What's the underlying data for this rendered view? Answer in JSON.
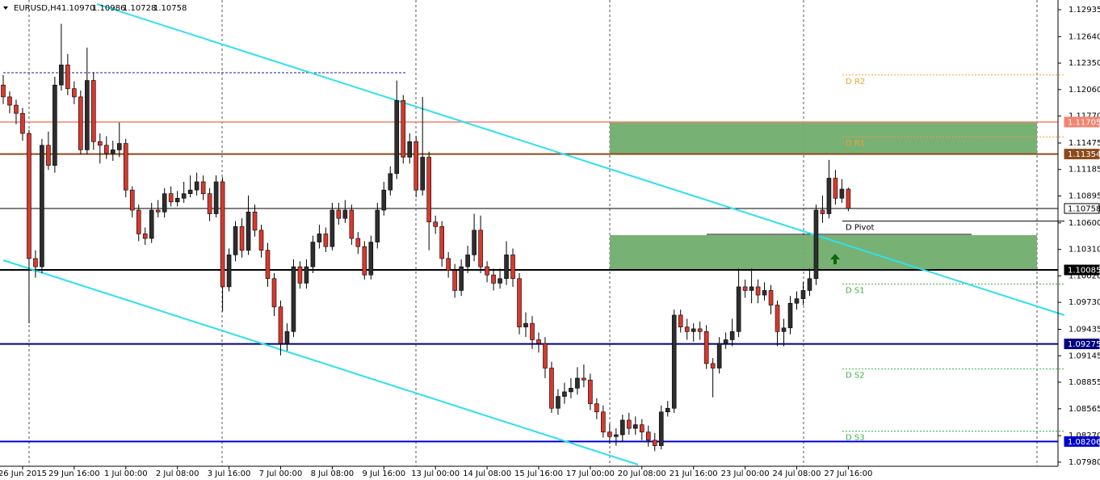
{
  "chart_data": {
    "type": "candlestick",
    "header": {
      "symbol": "EURUSD,H4",
      "ohlc": [
        "1.10970",
        "1.10986",
        "1.10728",
        "1.10758"
      ]
    },
    "up_color": "#2e2e2e",
    "down_color": "#d8392e",
    "xlim": [
      -0.5,
      163.5
    ],
    "ylim": [
      1.07935,
      1.13041
    ],
    "xticks": [
      {
        "value": 3,
        "label": "26 Jun 2015"
      },
      {
        "value": 11,
        "label": "29 Jun 16:00"
      },
      {
        "value": 19,
        "label": "1 Jul 00:00"
      },
      {
        "value": 27,
        "label": "2 Jul 08:00"
      },
      {
        "value": 35,
        "label": "3 Jul 16:00"
      },
      {
        "value": 43,
        "label": "7 Jul 00:00"
      },
      {
        "value": 51,
        "label": "8 Jul 08:00"
      },
      {
        "value": 59,
        "label": "9 Jul 16:00"
      },
      {
        "value": 67,
        "label": "13 Jul 00:00"
      },
      {
        "value": 75,
        "label": "14 Jul 08:00"
      },
      {
        "value": 83,
        "label": "15 Jul 16:00"
      },
      {
        "value": 91,
        "label": "17 Jul 00:00"
      },
      {
        "value": 99,
        "label": "20 Jul 08:00"
      },
      {
        "value": 107,
        "label": "21 Jul 16:00"
      },
      {
        "value": 115,
        "label": "23 Jul 00:00"
      },
      {
        "value": 123,
        "label": "24 Jul 08:00"
      },
      {
        "value": 131,
        "label": "27 Jul 16:00"
      }
    ],
    "yticks": [
      1.12935,
      {
        "value": 1.1264,
        "label": "1.12640"
      },
      {
        "value": 1.1235,
        "label": "1.12350"
      },
      {
        "value": 1.1206,
        "label": "1.12060"
      },
      {
        "value": 1.1177,
        "label": "1.11770"
      },
      1.11475,
      1.11185,
      1.10895,
      {
        "value": 1.106,
        "label": "1.10600"
      },
      {
        "value": 1.1031,
        "label": "1.10310"
      },
      {
        "value": 1.1002,
        "label": "1.10020"
      },
      {
        "value": 1.0973,
        "label": "1.09730"
      },
      1.09435,
      1.09145,
      1.08855,
      1.08565,
      {
        "value": 1.0827,
        "label": "1.08270"
      },
      {
        "value": 1.0798,
        "label": "1.07980"
      }
    ],
    "zones": [
      {
        "from": 1.11705,
        "to": 1.11354,
        "color": "#71ad6d"
      },
      {
        "from": 1.10466,
        "to": 1.10085,
        "color": "#71ad6d"
      }
    ],
    "levels": [
      {
        "value": 1.11705,
        "color": "#f4836f",
        "width": 1.5,
        "tag_color": "#f4836f",
        "text_color": "#ffffff"
      },
      {
        "value": 1.11354,
        "color": "#8b4a1c",
        "width": 2,
        "tag_color": "#8b4a1c",
        "text_color": "#ffffff"
      },
      {
        "value": 1.10758,
        "color": "#000000",
        "width": 1,
        "tag_color": "#ffffff",
        "text_color": "#000000"
      },
      {
        "value": 1.10085,
        "color": "#000000",
        "width": 2,
        "tag_color": "#000000",
        "text_color": "#ffffff"
      },
      {
        "value": 1.09275,
        "color": "#000080",
        "width": 2,
        "tag_color": "#000080",
        "text_color": "#ffffff"
      },
      {
        "value": 1.08206,
        "color": "#0000cd",
        "width": 2,
        "tag_color": "#0000cd",
        "text_color": "#ffffff"
      }
    ],
    "pivots": [
      {
        "name": "D R2",
        "value": 1.1222,
        "color": "#f0a030",
        "style": "dashed"
      },
      {
        "name": "D R1",
        "value": 1.1154,
        "color": "#f0a030",
        "style": "dashed"
      },
      {
        "name": "D Pivot",
        "value": 1.1062,
        "color": "#000000",
        "style": "solid"
      },
      {
        "name": "D S1",
        "value": 1.0993,
        "color": "#3cb043",
        "style": "dashed"
      },
      {
        "name": "D S2",
        "value": 1.09,
        "color": "#3cb043",
        "style": "dashed"
      },
      {
        "name": "D S3",
        "value": 1.0832,
        "color": "#3cb043",
        "style": "dashed"
      }
    ],
    "open": [
      1.1211,
      1.1198,
      1.1189,
      1.118,
      1.1158,
      1.1021,
      1.1012,
      1.1145,
      1.1123,
      1.1211,
      1.1233,
      1.1207,
      1.1198,
      1.114,
      1.1216,
      1.1149,
      1.1145,
      1.1136,
      1.114,
      1.1147,
      1.1096,
      1.1074,
      1.1048,
      1.1043,
      1.1074,
      1.1072,
      1.1092,
      1.1083,
      1.1087,
      1.1092,
      1.1096,
      1.1105,
      1.1092,
      1.107,
      1.1105,
      1.099,
      1.1025,
      1.1056,
      1.103,
      1.1072,
      1.1052,
      1.103,
      1.0999,
      1.0968,
      1.0928,
      1.0941,
      1.1012,
      1.0994,
      1.1012,
      1.1039,
      1.1048,
      1.1034,
      1.1074,
      1.1065,
      1.1074,
      1.1043,
      1.1034,
      1.1003,
      1.1039,
      1.1074,
      1.1096,
      1.1114,
      1.1194,
      1.1132,
      1.1149,
      1.1096,
      1.1132,
      1.1061,
      1.1056,
      1.1021,
      1.1008,
      1.0986,
      1.1012,
      1.1025,
      1.1052,
      1.1012,
      1.1003,
      1.0994,
      1.0999,
      1.1025,
      1.0999,
      1.0946,
      1.095,
      1.0932,
      1.0928,
      1.0901,
      1.0857,
      1.087,
      1.0875,
      1.0879,
      1.089,
      1.0888,
      1.0862,
      1.0853,
      1.0831,
      1.0826,
      1.0828,
      1.0844,
      1.0835,
      1.0839,
      1.0831,
      1.0822,
      1.0816,
      1.0853,
      1.0857,
      1.0959,
      1.0946,
      1.0941,
      1.0944,
      1.0941,
      1.0906,
      1.0901,
      1.0928,
      1.0932,
      1.0941,
      1.099,
      1.0986,
      1.099,
      1.0981,
      1.0986,
      1.097,
      1.0941,
      1.0945,
      1.0972,
      1.0977,
      1.0986,
      1.0999,
      1.1074,
      1.107,
      1.1109,
      1.1087,
      1.1097
    ],
    "high": [
      1.1222,
      1.1204,
      1.1195,
      1.1186,
      1.1162,
      1.103,
      1.1152,
      1.116,
      1.122,
      1.1278,
      1.1245,
      1.1215,
      1.1205,
      1.1252,
      1.1225,
      1.1158,
      1.1155,
      1.115,
      1.117,
      1.1152,
      1.11,
      1.108,
      1.1055,
      1.1082,
      1.1085,
      1.1098,
      1.11,
      1.1095,
      1.1105,
      1.1112,
      1.1115,
      1.1112,
      1.1098,
      1.1112,
      1.111,
      1.1032,
      1.1062,
      1.1065,
      1.109,
      1.108,
      1.1058,
      1.1038,
      1.1005,
      1.0975,
      1.095,
      1.102,
      1.1018,
      1.102,
      1.1046,
      1.1058,
      1.1055,
      1.1082,
      1.1082,
      1.1085,
      1.108,
      1.105,
      1.104,
      1.1046,
      1.1082,
      1.1105,
      1.1122,
      1.1216,
      1.12,
      1.1158,
      1.1155,
      1.1198,
      1.1138,
      1.1068,
      1.1062,
      1.1028,
      1.1015,
      1.102,
      1.1035,
      1.107,
      1.1068,
      1.1018,
      1.101,
      1.101,
      1.104,
      1.1032,
      1.1005,
      1.0962,
      1.0958,
      1.094,
      1.0935,
      1.0908,
      1.0878,
      1.0885,
      1.089,
      1.0902,
      1.0905,
      1.0895,
      1.0868,
      1.086,
      1.084,
      1.0835,
      1.085,
      1.0852,
      1.0848,
      1.0845,
      1.0838,
      1.083,
      1.086,
      1.0865,
      1.0965,
      1.0965,
      1.0955,
      1.095,
      1.0952,
      1.0948,
      1.0912,
      1.0935,
      1.094,
      1.0955,
      1.101,
      1.0998,
      1.101,
      1.0998,
      1.0995,
      1.0992,
      1.0975,
      1.0955,
      1.098,
      1.0985,
      1.0995,
      1.101,
      1.108,
      1.109,
      1.1129,
      1.1118,
      1.1108,
      1.10986
    ],
    "low": [
      1.119,
      1.118,
      1.1168,
      1.115,
      1.095,
      1.1,
      1.1005,
      1.1118,
      1.1115,
      1.1205,
      1.12,
      1.119,
      1.1135,
      1.1135,
      1.114,
      1.1125,
      1.113,
      1.1128,
      1.1132,
      1.1088,
      1.1066,
      1.104,
      1.1036,
      1.1038,
      1.1066,
      1.1066,
      1.1078,
      1.1078,
      1.1082,
      1.1088,
      1.109,
      1.1085,
      1.1062,
      1.1066,
      1.0963,
      1.0985,
      1.1018,
      1.1022,
      1.1025,
      1.1045,
      1.1022,
      1.099,
      1.0958,
      1.0915,
      1.092,
      1.0935,
      1.0988,
      1.0988,
      1.1005,
      1.1032,
      1.1028,
      1.103,
      1.1058,
      1.106,
      1.1036,
      1.1026,
      1.0998,
      1.0998,
      1.1032,
      1.1068,
      1.109,
      1.1108,
      1.1125,
      1.1125,
      1.1088,
      1.109,
      1.103,
      1.1048,
      1.1012,
      1.1,
      1.0978,
      1.098,
      1.1005,
      1.1018,
      1.1005,
      1.0995,
      1.0986,
      1.0988,
      1.0992,
      1.099,
      1.0938,
      1.0935,
      1.0922,
      1.0918,
      1.089,
      1.0852,
      1.085,
      1.0862,
      1.0868,
      1.0872,
      1.088,
      1.0855,
      1.0845,
      1.0825,
      1.0818,
      1.0816,
      1.082,
      1.0828,
      1.0828,
      1.0822,
      1.0815,
      1.081,
      1.0812,
      1.0848,
      1.0852,
      1.094,
      1.0932,
      1.093,
      1.0932,
      1.09,
      1.0869,
      1.0895,
      1.0922,
      1.0925,
      1.0935,
      1.0978,
      1.0972,
      1.0972,
      1.0975,
      1.096,
      1.0925,
      1.0925,
      1.0938,
      1.0965,
      1.097,
      1.098,
      1.0992,
      1.106,
      1.1065,
      1.108,
      1.1082,
      1.10728
    ],
    "close": [
      1.1198,
      1.1189,
      1.118,
      1.1158,
      1.1021,
      1.1012,
      1.1145,
      1.1123,
      1.1211,
      1.1233,
      1.1207,
      1.1198,
      1.114,
      1.1216,
      1.1149,
      1.1145,
      1.1136,
      1.114,
      1.1147,
      1.1096,
      1.1074,
      1.1048,
      1.1043,
      1.1074,
      1.1072,
      1.1092,
      1.1083,
      1.1087,
      1.1092,
      1.1096,
      1.1105,
      1.1092,
      1.107,
      1.1105,
      1.099,
      1.1025,
      1.1056,
      1.103,
      1.1072,
      1.1052,
      1.103,
      1.0999,
      1.0968,
      1.0928,
      1.0941,
      1.1012,
      1.0994,
      1.1012,
      1.1039,
      1.1048,
      1.1034,
      1.1074,
      1.1065,
      1.1074,
      1.1043,
      1.1034,
      1.1003,
      1.1039,
      1.1074,
      1.1096,
      1.1114,
      1.1194,
      1.1132,
      1.1149,
      1.1096,
      1.1132,
      1.1061,
      1.1056,
      1.1021,
      1.1008,
      1.0986,
      1.1012,
      1.1025,
      1.1052,
      1.1012,
      1.1003,
      1.0994,
      1.0999,
      1.1025,
      1.0999,
      1.0946,
      1.095,
      1.0932,
      1.0928,
      1.0901,
      1.0857,
      1.087,
      1.0875,
      1.0879,
      1.089,
      1.0888,
      1.0862,
      1.0853,
      1.0831,
      1.0826,
      1.0828,
      1.0844,
      1.0835,
      1.0839,
      1.0831,
      1.0822,
      1.0816,
      1.0853,
      1.0857,
      1.0959,
      1.0946,
      1.0941,
      1.0944,
      1.0941,
      1.0906,
      1.0901,
      1.0928,
      1.0932,
      1.0941,
      1.099,
      1.0986,
      1.099,
      1.0981,
      1.0986,
      1.097,
      1.0941,
      1.0945,
      1.0972,
      1.0977,
      1.0986,
      1.0999,
      1.1074,
      1.107,
      1.1109,
      1.1087,
      1.1097,
      1.10758
    ]
  }
}
